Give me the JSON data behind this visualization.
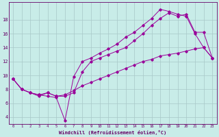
{
  "xlabel": "Windchill (Refroidissement éolien,°C)",
  "background_color": "#c8ece8",
  "line_color": "#990099",
  "grid_color": "#a8c8c8",
  "text_color": "#660066",
  "xlim": [
    -0.5,
    23.5
  ],
  "ylim": [
    3.0,
    20.5
  ],
  "xticks": [
    0,
    1,
    2,
    3,
    4,
    5,
    6,
    7,
    8,
    9,
    10,
    11,
    12,
    13,
    14,
    15,
    16,
    17,
    18,
    19,
    20,
    21,
    22,
    23
  ],
  "yticks": [
    4,
    6,
    8,
    10,
    12,
    14,
    16,
    18
  ],
  "line1_x": [
    0,
    1,
    2,
    3,
    4,
    5,
    6,
    7,
    8,
    9,
    10,
    11,
    12,
    13,
    14,
    15,
    16,
    17,
    18,
    19,
    20,
    21,
    22,
    23
  ],
  "line1_y": [
    9.5,
    8.0,
    7.5,
    7.2,
    7.0,
    6.8,
    3.5,
    9.8,
    12.0,
    12.5,
    13.2,
    13.8,
    14.5,
    15.5,
    16.2,
    17.2,
    18.2,
    19.5,
    19.2,
    18.8,
    18.5,
    16.0,
    14.0,
    12.5
  ],
  "line2_x": [
    0,
    1,
    2,
    3,
    4,
    5,
    6,
    7,
    8,
    9,
    10,
    11,
    12,
    13,
    14,
    15,
    16,
    17,
    18,
    19,
    20,
    21,
    22,
    23
  ],
  "line2_y": [
    9.5,
    8.0,
    7.5,
    7.0,
    7.5,
    7.0,
    7.0,
    7.5,
    10.5,
    12.0,
    12.5,
    13.0,
    13.5,
    14.0,
    15.0,
    16.0,
    17.2,
    18.2,
    19.0,
    18.5,
    18.8,
    16.2,
    16.2,
    12.5
  ],
  "line3_x": [
    0,
    1,
    2,
    3,
    4,
    5,
    6,
    7,
    8,
    9,
    10,
    11,
    12,
    13,
    14,
    15,
    16,
    17,
    18,
    19,
    20,
    21,
    22,
    23
  ],
  "line3_y": [
    9.5,
    8.0,
    7.5,
    7.2,
    7.5,
    7.0,
    7.2,
    7.8,
    8.5,
    9.0,
    9.5,
    10.0,
    10.5,
    11.0,
    11.5,
    12.0,
    12.3,
    12.8,
    13.0,
    13.2,
    13.5,
    13.8,
    14.0,
    12.5
  ]
}
